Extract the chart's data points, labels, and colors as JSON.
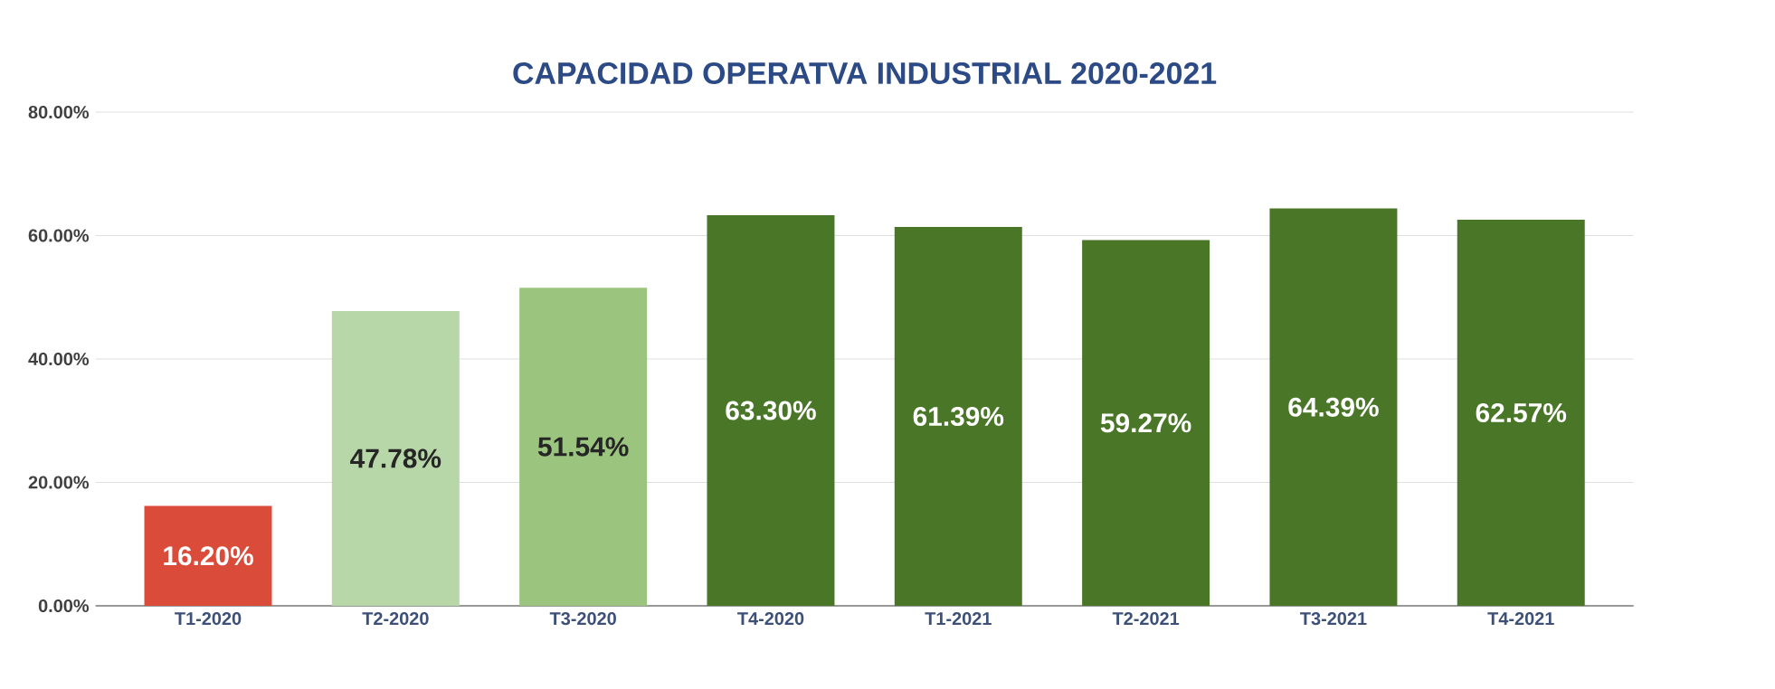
{
  "chart_data": {
    "type": "bar",
    "title": "CAPACIDAD OPERATVA INDUSTRIAL 2020-2021",
    "categories": [
      "T1-2020",
      "T2-2020",
      "T3-2020",
      "T4-2020",
      "T1-2021",
      "T2-2021",
      "T3-2021",
      "T4-2021"
    ],
    "values": [
      16.2,
      47.78,
      51.54,
      63.3,
      61.39,
      59.27,
      64.39,
      62.57
    ],
    "colors": [
      "#db4b3a",
      "#b7d7a8",
      "#9bc47f",
      "#4a7628",
      "#4a7628",
      "#4a7628",
      "#4a7628",
      "#4a7628"
    ],
    "value_labels": [
      "16.20%",
      "47.78%",
      "51.54%",
      "63.30%",
      "61.39%",
      "59.27%",
      "64.39%",
      "62.57%"
    ],
    "ylim": [
      0,
      80
    ],
    "yticks": [
      {
        "value": 0,
        "label": "0.00%"
      },
      {
        "value": 20,
        "label": "20.00%"
      },
      {
        "value": 40,
        "label": "40.00%"
      },
      {
        "value": 60,
        "label": "60.00%"
      },
      {
        "value": 80,
        "label": "80.00%"
      }
    ],
    "grid": "y"
  }
}
